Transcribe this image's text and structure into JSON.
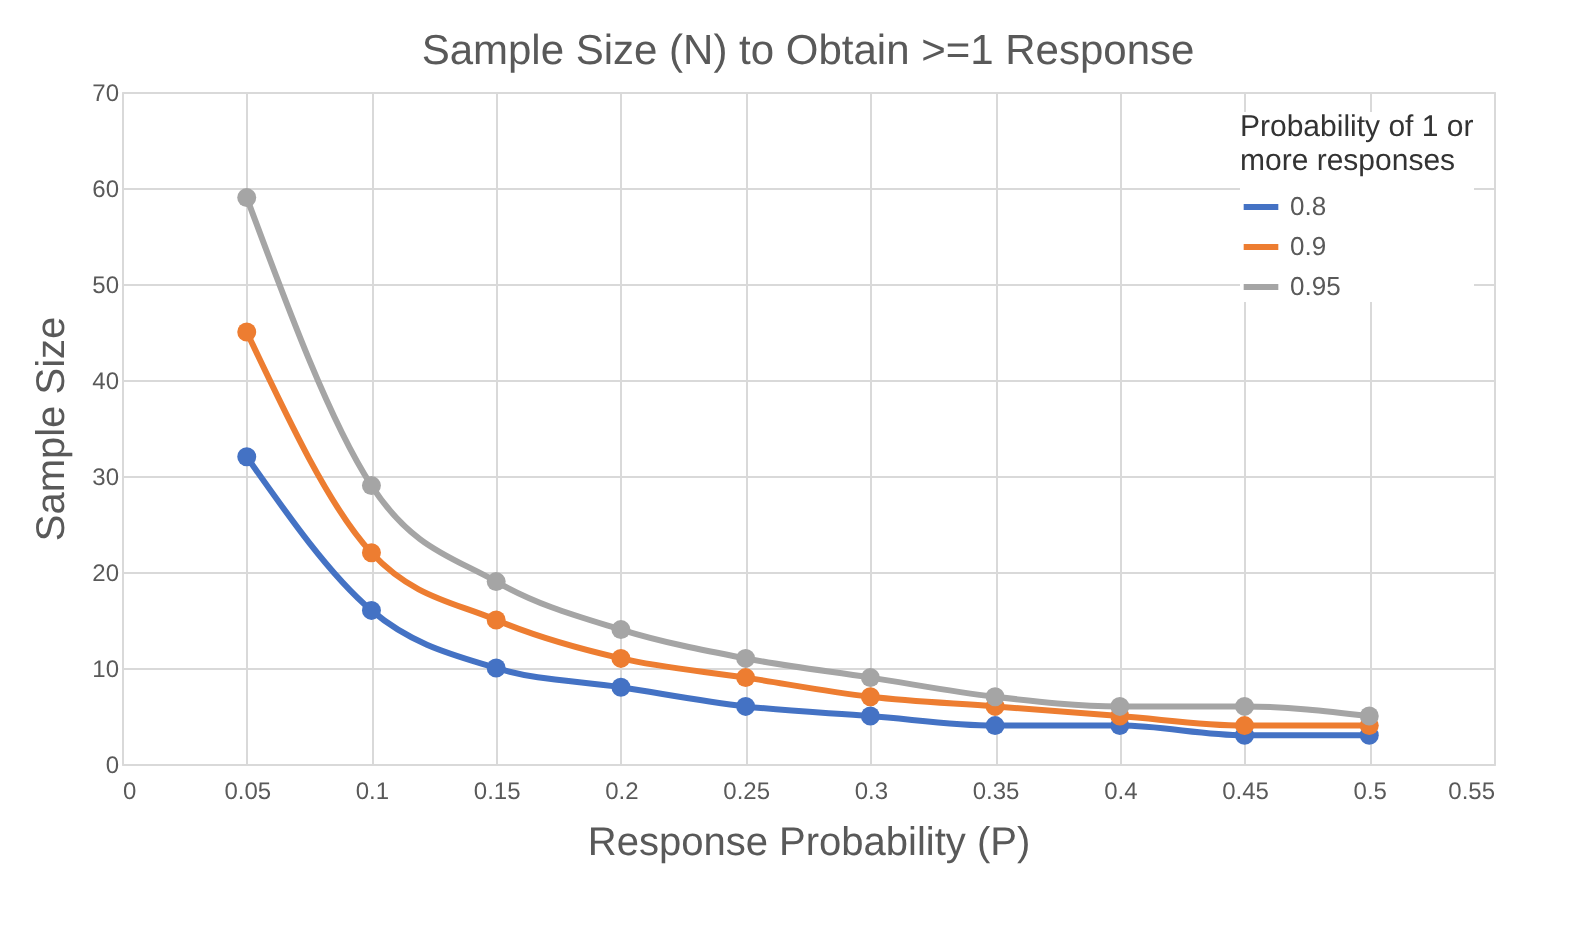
{
  "chart_data": {
    "type": "line",
    "title": "Sample Size (N) to Obtain >=1 Response",
    "xlabel": "Response Probability (P)",
    "ylabel": "Sample Size",
    "legend_title": "Probability of 1 or more responses",
    "x": [
      0.05,
      0.1,
      0.15,
      0.2,
      0.25,
      0.3,
      0.35,
      0.4,
      0.45,
      0.5
    ],
    "series": [
      {
        "name": "0.8",
        "color": "#4472c4",
        "values": [
          32,
          16,
          10,
          8,
          6,
          5,
          4,
          4,
          3,
          3
        ]
      },
      {
        "name": "0.9",
        "color": "#ed7d31",
        "values": [
          45,
          22,
          15,
          11,
          9,
          7,
          6,
          5,
          4,
          4
        ]
      },
      {
        "name": "0.95",
        "color": "#a5a5a5",
        "values": [
          59,
          29,
          19,
          14,
          11,
          9,
          7,
          6,
          6,
          5
        ]
      }
    ],
    "xlim": [
      0,
      0.55
    ],
    "xticks": [
      0,
      0.05,
      0.1,
      0.15,
      0.2,
      0.25,
      0.3,
      0.35,
      0.4,
      0.45,
      0.5,
      0.55
    ],
    "ylim": [
      0,
      70
    ],
    "yticks": [
      0,
      10,
      20,
      30,
      40,
      50,
      60,
      70
    ],
    "grid": true,
    "legend": "top right",
    "marker": "circle",
    "line_style": "solid"
  }
}
